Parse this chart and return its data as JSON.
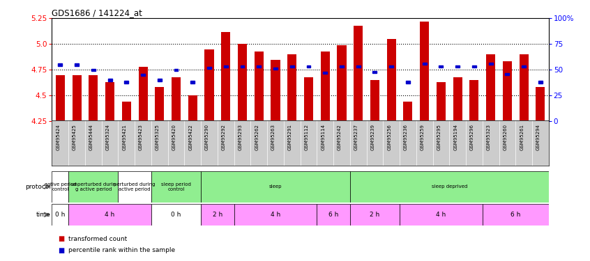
{
  "title": "GDS1686 / 141224_at",
  "samples": [
    "GSM95424",
    "GSM95425",
    "GSM95444",
    "GSM95324",
    "GSM95421",
    "GSM95423",
    "GSM95325",
    "GSM95420",
    "GSM95422",
    "GSM95290",
    "GSM95292",
    "GSM95293",
    "GSM95262",
    "GSM95263",
    "GSM95291",
    "GSM95112",
    "GSM95114",
    "GSM95242",
    "GSM95237",
    "GSM95239",
    "GSM95256",
    "GSM95236",
    "GSM95259",
    "GSM95295",
    "GSM95194",
    "GSM95296",
    "GSM95323",
    "GSM95260",
    "GSM95261",
    "GSM95294"
  ],
  "red_values": [
    4.7,
    4.7,
    4.7,
    4.63,
    4.44,
    4.78,
    4.58,
    4.68,
    4.5,
    4.95,
    5.12,
    5.0,
    4.93,
    4.85,
    4.9,
    4.68,
    4.93,
    4.99,
    5.18,
    4.65,
    5.05,
    4.44,
    5.22,
    4.63,
    4.68,
    4.65,
    4.9,
    4.83,
    4.9,
    4.58
  ],
  "blue_percentiles": [
    55,
    55,
    50,
    40,
    38,
    45,
    40,
    50,
    38,
    52,
    53,
    53,
    53,
    51,
    53,
    53,
    47,
    53,
    53,
    48,
    53,
    38,
    56,
    53,
    53,
    53,
    56,
    46,
    53,
    38
  ],
  "ymin": 4.25,
  "ymax": 5.25,
  "yticks_left": [
    4.25,
    4.5,
    4.75,
    5.0,
    5.25
  ],
  "ytick_labels_right": [
    "0",
    "25",
    "50",
    "75",
    "100%"
  ],
  "yticks_right": [
    0,
    25,
    50,
    75,
    100
  ],
  "bar_color": "#cc0000",
  "blue_color": "#0000cc",
  "grid_color": "#000000",
  "xtick_bg": "#cccccc",
  "protocol_rows": [
    {
      "text": "active period\ncontrol",
      "start": 0,
      "end": 1,
      "color": "#ffffff"
    },
    {
      "text": "unperturbed durin\ng active period",
      "start": 1,
      "end": 4,
      "color": "#90EE90"
    },
    {
      "text": "perturbed during\nactive period",
      "start": 4,
      "end": 6,
      "color": "#ffffff"
    },
    {
      "text": "sleep period\ncontrol",
      "start": 6,
      "end": 9,
      "color": "#90EE90"
    },
    {
      "text": "sleep",
      "start": 9,
      "end": 18,
      "color": "#90EE90"
    },
    {
      "text": "sleep deprived",
      "start": 18,
      "end": 30,
      "color": "#90EE90"
    }
  ],
  "time_rows": [
    {
      "text": "0 h",
      "start": 0,
      "end": 1,
      "color": "#ffffff"
    },
    {
      "text": "4 h",
      "start": 1,
      "end": 6,
      "color": "#ff99ff"
    },
    {
      "text": "0 h",
      "start": 6,
      "end": 9,
      "color": "#ffffff"
    },
    {
      "text": "2 h",
      "start": 9,
      "end": 11,
      "color": "#ff99ff"
    },
    {
      "text": "4 h",
      "start": 11,
      "end": 16,
      "color": "#ff99ff"
    },
    {
      "text": "6 h",
      "start": 16,
      "end": 18,
      "color": "#ff99ff"
    },
    {
      "text": "2 h",
      "start": 18,
      "end": 21,
      "color": "#ff99ff"
    },
    {
      "text": "4 h",
      "start": 21,
      "end": 26,
      "color": "#ff99ff"
    },
    {
      "text": "6 h",
      "start": 26,
      "end": 30,
      "color": "#ff99ff"
    }
  ],
  "legend": [
    {
      "color": "#cc0000",
      "label": "transformed count"
    },
    {
      "color": "#0000cc",
      "label": "percentile rank within the sample"
    }
  ]
}
